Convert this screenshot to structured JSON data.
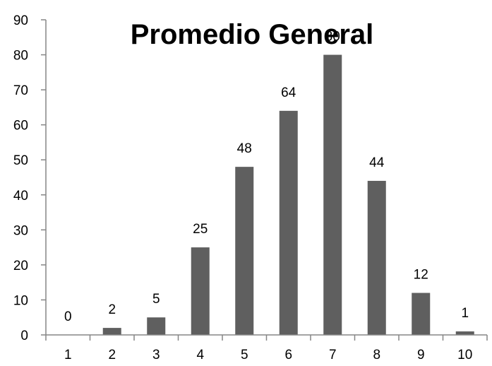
{
  "chart_data": {
    "type": "bar",
    "title": "Promedio General",
    "xlabel": "",
    "ylabel": "",
    "categories": [
      "1",
      "2",
      "3",
      "4",
      "5",
      "6",
      "7",
      "8",
      "9",
      "10"
    ],
    "values": [
      0,
      2,
      5,
      25,
      48,
      64,
      80,
      44,
      12,
      1
    ],
    "ylim": [
      0,
      90
    ],
    "yticks": [
      0,
      10,
      20,
      30,
      40,
      50,
      60,
      70,
      80,
      90
    ],
    "grid": false,
    "legend": "none",
    "data_labels": true
  },
  "colors": {
    "bar": "#5f5f5f",
    "axis": "#868686",
    "text": "#000000",
    "background": "#ffffff"
  }
}
